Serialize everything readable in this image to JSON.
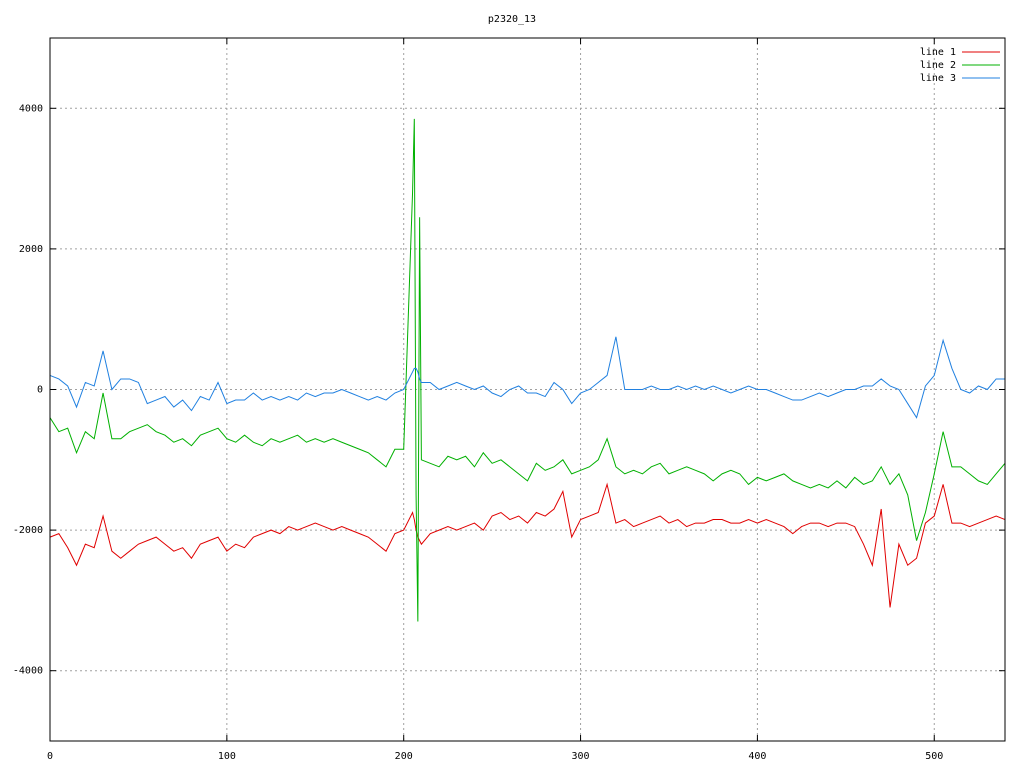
{
  "chart_data": {
    "type": "line",
    "title": "p2320_13",
    "x": [
      0,
      5,
      10,
      15,
      20,
      25,
      30,
      35,
      40,
      45,
      50,
      55,
      60,
      65,
      70,
      75,
      80,
      85,
      90,
      95,
      100,
      105,
      110,
      115,
      120,
      125,
      130,
      135,
      140,
      145,
      150,
      155,
      160,
      165,
      170,
      175,
      180,
      185,
      190,
      195,
      200,
      205,
      206,
      207,
      208,
      209,
      210,
      215,
      220,
      225,
      230,
      235,
      240,
      245,
      250,
      255,
      260,
      265,
      270,
      275,
      280,
      285,
      290,
      295,
      300,
      305,
      310,
      315,
      320,
      325,
      330,
      335,
      340,
      345,
      350,
      355,
      360,
      365,
      370,
      375,
      380,
      385,
      390,
      395,
      400,
      405,
      410,
      415,
      420,
      425,
      430,
      435,
      440,
      445,
      450,
      455,
      460,
      465,
      470,
      475,
      480,
      485,
      490,
      495,
      500,
      505,
      510,
      515,
      520,
      525,
      530,
      535,
      540
    ],
    "series": [
      {
        "name": "line 1",
        "color": "#e00000",
        "values": [
          -2100,
          -2050,
          -2250,
          -2500,
          -2200,
          -2250,
          -1800,
          -2300,
          -2400,
          -2300,
          -2200,
          -2150,
          -2100,
          -2200,
          -2300,
          -2250,
          -2400,
          -2200,
          -2150,
          -2100,
          -2300,
          -2200,
          -2250,
          -2100,
          -2050,
          -2000,
          -2050,
          -1950,
          -2000,
          -1950,
          -1900,
          -1950,
          -2000,
          -1950,
          -2000,
          -2050,
          -2100,
          -2200,
          -2300,
          -2050,
          -2000,
          -1750,
          -1850,
          -2000,
          -2100,
          -2150,
          -2200,
          -2050,
          -2000,
          -1950,
          -2000,
          -1950,
          -1900,
          -2000,
          -1800,
          -1750,
          -1850,
          -1800,
          -1900,
          -1750,
          -1800,
          -1700,
          -1450,
          -2100,
          -1850,
          -1800,
          -1750,
          -1350,
          -1900,
          -1850,
          -1950,
          -1900,
          -1850,
          -1800,
          -1900,
          -1850,
          -1950,
          -1900,
          -1900,
          -1850,
          -1850,
          -1900,
          -1900,
          -1850,
          -1900,
          -1850,
          -1900,
          -1950,
          -2050,
          -1950,
          -1900,
          -1900,
          -1950,
          -1900,
          -1900,
          -1950,
          -2200,
          -2500,
          -1700,
          -3100,
          -2200,
          -2500,
          -2400,
          -1900,
          -1800,
          -1350,
          -1900,
          -1900,
          -1950,
          -1900,
          -1850,
          -1800,
          -1850
        ]
      },
      {
        "name": "line 2",
        "color": "#00b000",
        "values": [
          -400,
          -600,
          -550,
          -900,
          -600,
          -700,
          -50,
          -700,
          -700,
          -600,
          -550,
          -500,
          -600,
          -650,
          -750,
          -700,
          -800,
          -650,
          -600,
          -550,
          -700,
          -750,
          -650,
          -750,
          -800,
          -700,
          -750,
          -700,
          -650,
          -750,
          -700,
          -750,
          -700,
          -750,
          -800,
          -850,
          -900,
          -1000,
          -1100,
          -850,
          -850,
          2800,
          3850,
          -1500,
          -3300,
          2450,
          -1000,
          -1050,
          -1100,
          -950,
          -1000,
          -950,
          -1100,
          -900,
          -1050,
          -1000,
          -1100,
          -1200,
          -1300,
          -1050,
          -1150,
          -1100,
          -1000,
          -1200,
          -1150,
          -1100,
          -1000,
          -700,
          -1100,
          -1200,
          -1150,
          -1200,
          -1100,
          -1050,
          -1200,
          -1150,
          -1100,
          -1150,
          -1200,
          -1300,
          -1200,
          -1150,
          -1200,
          -1350,
          -1250,
          -1300,
          -1250,
          -1200,
          -1300,
          -1350,
          -1400,
          -1350,
          -1400,
          -1300,
          -1400,
          -1250,
          -1350,
          -1300,
          -1100,
          -1350,
          -1200,
          -1500,
          -2150,
          -1750,
          -1200,
          -600,
          -1100,
          -1100,
          -1200,
          -1300,
          -1350,
          -1200,
          -1050
        ]
      },
      {
        "name": "line 3",
        "color": "#2080e0",
        "values": [
          200,
          150,
          50,
          -250,
          100,
          50,
          550,
          0,
          150,
          150,
          100,
          -200,
          -150,
          -100,
          -250,
          -150,
          -300,
          -100,
          -150,
          100,
          -200,
          -150,
          -150,
          -50,
          -150,
          -100,
          -150,
          -100,
          -150,
          -50,
          -100,
          -50,
          -50,
          0,
          -50,
          -100,
          -150,
          -100,
          -150,
          -50,
          0,
          250,
          300,
          300,
          250,
          150,
          100,
          100,
          0,
          50,
          100,
          50,
          0,
          50,
          -50,
          -100,
          0,
          50,
          -50,
          -50,
          -100,
          100,
          0,
          -200,
          -50,
          0,
          100,
          200,
          750,
          0,
          0,
          0,
          50,
          0,
          0,
          50,
          0,
          50,
          0,
          50,
          0,
          -50,
          0,
          50,
          0,
          0,
          -50,
          -100,
          -150,
          -150,
          -100,
          -50,
          -100,
          -50,
          0,
          0,
          50,
          50,
          150,
          50,
          0,
          -200,
          -400,
          50,
          200,
          700,
          300,
          0,
          -50,
          50,
          0,
          150,
          150
        ]
      }
    ],
    "xlim": [
      0,
      540
    ],
    "xticks": [
      0,
      100,
      200,
      300,
      400,
      500
    ],
    "ylim": [
      -5000,
      5000
    ],
    "yticks": [
      -4000,
      -2000,
      0,
      2000,
      4000
    ],
    "grid": true,
    "legend": "top-right"
  }
}
